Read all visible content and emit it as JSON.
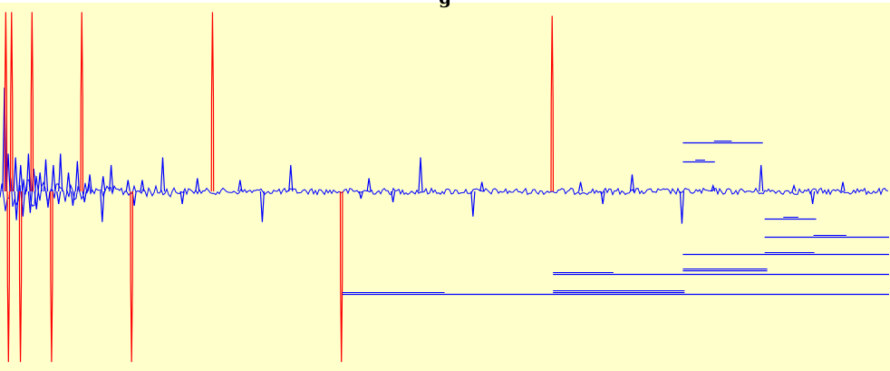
{
  "chart_data": {
    "type": "line",
    "title": "g",
    "xlabel": "",
    "ylabel": "",
    "colors": {
      "background": "#ffffcc",
      "spectrum": "#0000ff",
      "marker": "#ff0000",
      "integral": "#0000ff"
    },
    "x_range": [
      0,
      1
    ],
    "baseline": 0,
    "up_peaks": [
      {
        "x": 0.005,
        "y": 0.55
      },
      {
        "x": 0.0092,
        "y": 0.2
      },
      {
        "x": 0.0175,
        "y": 0.18
      },
      {
        "x": 0.0232,
        "y": 0.14
      },
      {
        "x": 0.032,
        "y": 0.2
      },
      {
        "x": 0.038,
        "y": 0.12
      },
      {
        "x": 0.045,
        "y": 0.1
      },
      {
        "x": 0.0515,
        "y": 0.17
      },
      {
        "x": 0.06,
        "y": 0.14
      },
      {
        "x": 0.068,
        "y": 0.2
      },
      {
        "x": 0.077,
        "y": 0.1
      },
      {
        "x": 0.087,
        "y": 0.16
      },
      {
        "x": 0.101,
        "y": 0.09
      },
      {
        "x": 0.116,
        "y": 0.08
      },
      {
        "x": 0.125,
        "y": 0.14
      },
      {
        "x": 0.144,
        "y": 0.06
      },
      {
        "x": 0.16,
        "y": 0.06
      },
      {
        "x": 0.183,
        "y": 0.18
      },
      {
        "x": 0.222,
        "y": 0.07
      },
      {
        "x": 0.27,
        "y": 0.06
      },
      {
        "x": 0.327,
        "y": 0.14
      },
      {
        "x": 0.415,
        "y": 0.07
      },
      {
        "x": 0.473,
        "y": 0.18
      },
      {
        "x": 0.542,
        "y": 0.05
      },
      {
        "x": 0.653,
        "y": 0.05
      },
      {
        "x": 0.711,
        "y": 0.09
      },
      {
        "x": 0.802,
        "y": 0.03
      },
      {
        "x": 0.856,
        "y": 0.14
      },
      {
        "x": 0.893,
        "y": 0.03
      },
      {
        "x": 0.948,
        "y": 0.05
      }
    ],
    "down_peaks": [
      {
        "x": 0.0185,
        "y": -0.16
      },
      {
        "x": 0.0258,
        "y": -0.14
      },
      {
        "x": 0.034,
        "y": -0.12
      },
      {
        "x": 0.041,
        "y": -0.1
      },
      {
        "x": 0.054,
        "y": -0.09
      },
      {
        "x": 0.066,
        "y": -0.07
      },
      {
        "x": 0.082,
        "y": -0.08
      },
      {
        "x": 0.095,
        "y": -0.06
      },
      {
        "x": 0.115,
        "y": -0.17
      },
      {
        "x": 0.151,
        "y": -0.08
      },
      {
        "x": 0.205,
        "y": -0.07
      },
      {
        "x": 0.295,
        "y": -0.17
      },
      {
        "x": 0.406,
        "y": -0.04
      },
      {
        "x": 0.442,
        "y": -0.06
      },
      {
        "x": 0.532,
        "y": -0.14
      },
      {
        "x": 0.678,
        "y": -0.07
      },
      {
        "x": 0.767,
        "y": -0.18
      },
      {
        "x": 0.914,
        "y": -0.07
      }
    ],
    "red_markers": [
      {
        "x": 0.0065,
        "y": 0.95,
        "lower": false
      },
      {
        "x": 0.013,
        "y": 0.95,
        "lower": false
      },
      {
        "x": 0.036,
        "y": 0.95,
        "lower": false
      },
      {
        "x": 0.092,
        "y": 0.95,
        "lower": false
      },
      {
        "x": 0.239,
        "y": 0.95,
        "lower": false
      },
      {
        "x": 0.621,
        "y": 0.93,
        "lower": false
      },
      {
        "x": 0.0095,
        "y": -0.95,
        "lower": true
      },
      {
        "x": 0.023,
        "y": -0.95,
        "lower": true
      },
      {
        "x": 0.058,
        "y": -0.95,
        "lower": true
      },
      {
        "x": 0.148,
        "y": -0.95,
        "lower": true
      },
      {
        "x": 0.384,
        "y": -0.95,
        "lower": true
      }
    ],
    "integral_segments": [
      {
        "x1": 0.768,
        "x2": 0.858,
        "y": 0.26,
        "tick_x1": 0.803,
        "tick_x2": 0.823
      },
      {
        "x1": 0.768,
        "x2": 0.804,
        "y": 0.16,
        "tick_x1": 0.782,
        "tick_x2": 0.793
      },
      {
        "x1": 0.86,
        "x2": 0.918,
        "y": -0.15,
        "tick_x1": 0.881,
        "tick_x2": 0.898
      },
      {
        "x1": 0.86,
        "x2": 1.0,
        "y": -0.25,
        "tick_x1": 0.915,
        "tick_x2": 0.952
      },
      {
        "x1": 0.768,
        "x2": 1.0,
        "y": -0.35,
        "tick_x1": 0.86,
        "tick_x2": 0.916
      },
      {
        "x1": 0.768,
        "x2": 0.863,
        "y": -0.44,
        "tick_x1": 0.768,
        "tick_x2": 0.863
      },
      {
        "x1": 0.622,
        "x2": 1.0,
        "y": -0.46,
        "tick_x1": 0.622,
        "tick_x2": 0.69
      },
      {
        "x1": 0.622,
        "x2": 0.77,
        "y": -0.56,
        "tick_x1": 0.622,
        "tick_x2": 0.77
      },
      {
        "x1": 0.385,
        "x2": 1.0,
        "y": -0.57,
        "tick_x1": 0.385,
        "tick_x2": 0.5
      }
    ]
  }
}
